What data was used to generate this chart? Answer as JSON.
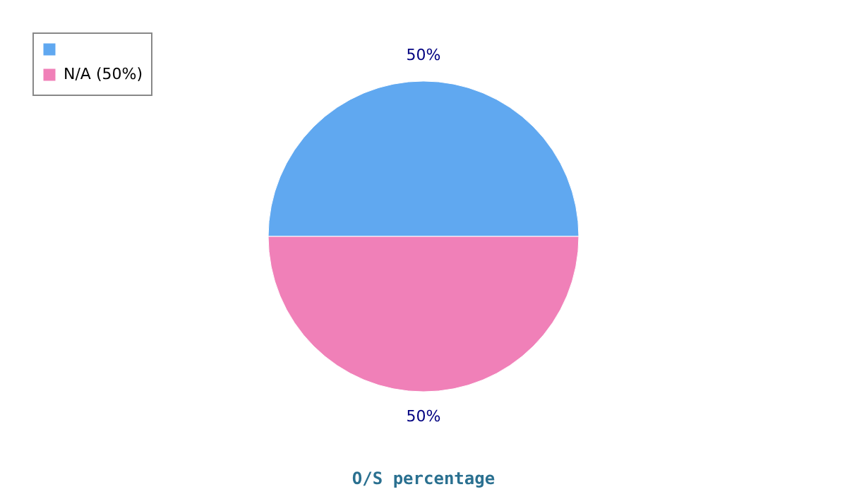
{
  "chart_data": {
    "type": "pie",
    "title": "O/S percentage",
    "categories": [
      null,
      "N/A (50%)"
    ],
    "values": [
      50,
      50
    ],
    "colors": [
      "#60a8f0",
      "#f080b8"
    ],
    "value_labels": [
      "50%",
      "50%"
    ],
    "legend": "top left"
  }
}
